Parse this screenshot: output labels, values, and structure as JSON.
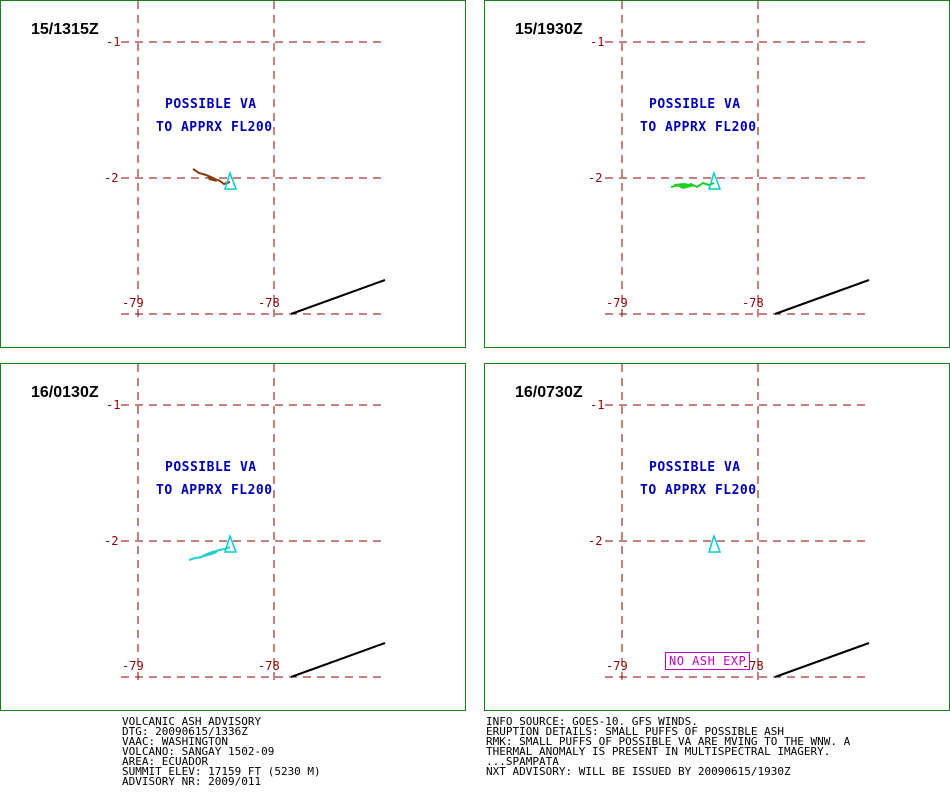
{
  "panels": [
    {
      "time": "15/1315Z",
      "va_line1": "POSSIBLE VA",
      "va_line2": "TO APPRX FL200",
      "lat_top": "-1",
      "lat_mid": "-2",
      "lon_left": "-79",
      "lon_right": "-78",
      "plume_color": "#8b3a0f"
    },
    {
      "time": "15/1930Z",
      "va_line1": "POSSIBLE VA",
      "va_line2": "TO APPRX FL200",
      "lat_top": "-1",
      "lat_mid": "-2",
      "lon_left": "-79",
      "lon_right": "-78",
      "plume_color": "#22cc22"
    },
    {
      "time": "16/0130Z",
      "va_line1": "POSSIBLE VA",
      "va_line2": "TO APPRX FL200",
      "lat_top": "-1",
      "lat_mid": "-2",
      "lon_left": "-79",
      "lon_right": "-78",
      "plume_color": "#22d0d0"
    },
    {
      "time": "16/0730Z",
      "va_line1": "POSSIBLE VA",
      "va_line2": "TO APPRX FL200",
      "lat_top": "-1",
      "lat_mid": "-2",
      "lon_left": "-79",
      "lon_right": "-78",
      "no_ash": "NO ASH EXP"
    }
  ],
  "colors": {
    "grid": "#8b0000",
    "volcano": "#00cccc",
    "text_va": "#0000b0",
    "border": "#1a7f1a",
    "no_ash": "#c000c0"
  },
  "advisory_left": [
    "VOLCANIC ASH ADVISORY",
    "DTG: 20090615/1336Z",
    "VAAC: WASHINGTON",
    "VOLCANO: SANGAY 1502-09",
    "AREA: ECUADOR",
    "SUMMIT ELEV: 17159 FT (5230 M)",
    "ADVISORY NR: 2009/011"
  ],
  "advisory_right": [
    "INFO SOURCE: GOES-10. GFS WINDS.",
    "ERUPTION DETAILS: SMALL PUFFS OF POSSIBLE ASH",
    "RMK: SMALL PUFFS OF POSSIBLE VA ARE MVING TO THE WNW. A",
    "THERMAL ANOMALY IS PRESENT IN MULTISPECTRAL IMAGERY.",
    "...SPAMPATA",
    "NXT ADVISORY: WILL BE ISSUED BY 20090615/1930Z"
  ]
}
